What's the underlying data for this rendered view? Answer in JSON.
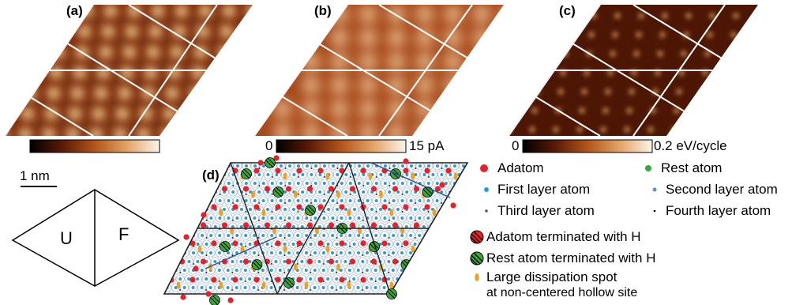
{
  "panels": {
    "a": {
      "label": "(a)"
    },
    "b": {
      "label": "(b)"
    },
    "c": {
      "label": "(c)"
    },
    "d": {
      "label": "(d)"
    }
  },
  "colorbars": {
    "b": {
      "min_label": "0",
      "max_label": "15 pA"
    },
    "c": {
      "min_label": "0",
      "max_label": "0.2 eV/cycle"
    }
  },
  "scale_bar": {
    "label": "1 nm"
  },
  "unit_cell": {
    "left_label": "U",
    "right_label": "F"
  },
  "legend": {
    "adatom": "Adatom",
    "rest_atom": "Rest atom",
    "first_layer": "First layer atom",
    "second_layer": "Second layer atom",
    "third_layer": "Third layer atom",
    "fourth_layer": "Fourth layer atom",
    "adatom_h": "Adatom terminated with H",
    "rest_h": "Rest atom terminated with H",
    "dissipation_line1": "Large dissipation spot",
    "dissipation_line2": "at non-centered hollow site"
  },
  "colors": {
    "adatom": "#e8202a",
    "rest_atom": "#3aa83a",
    "first_layer": "#2a9bd8",
    "second_layer": "#6f8fb8",
    "dissipation": "#f0a020",
    "panel_a_dark": "#5a1a08",
    "panel_a_light": "#f6d9a8",
    "panel_c_dark": "#3a0a04",
    "panel_c_light": "#f0d8a0"
  }
}
